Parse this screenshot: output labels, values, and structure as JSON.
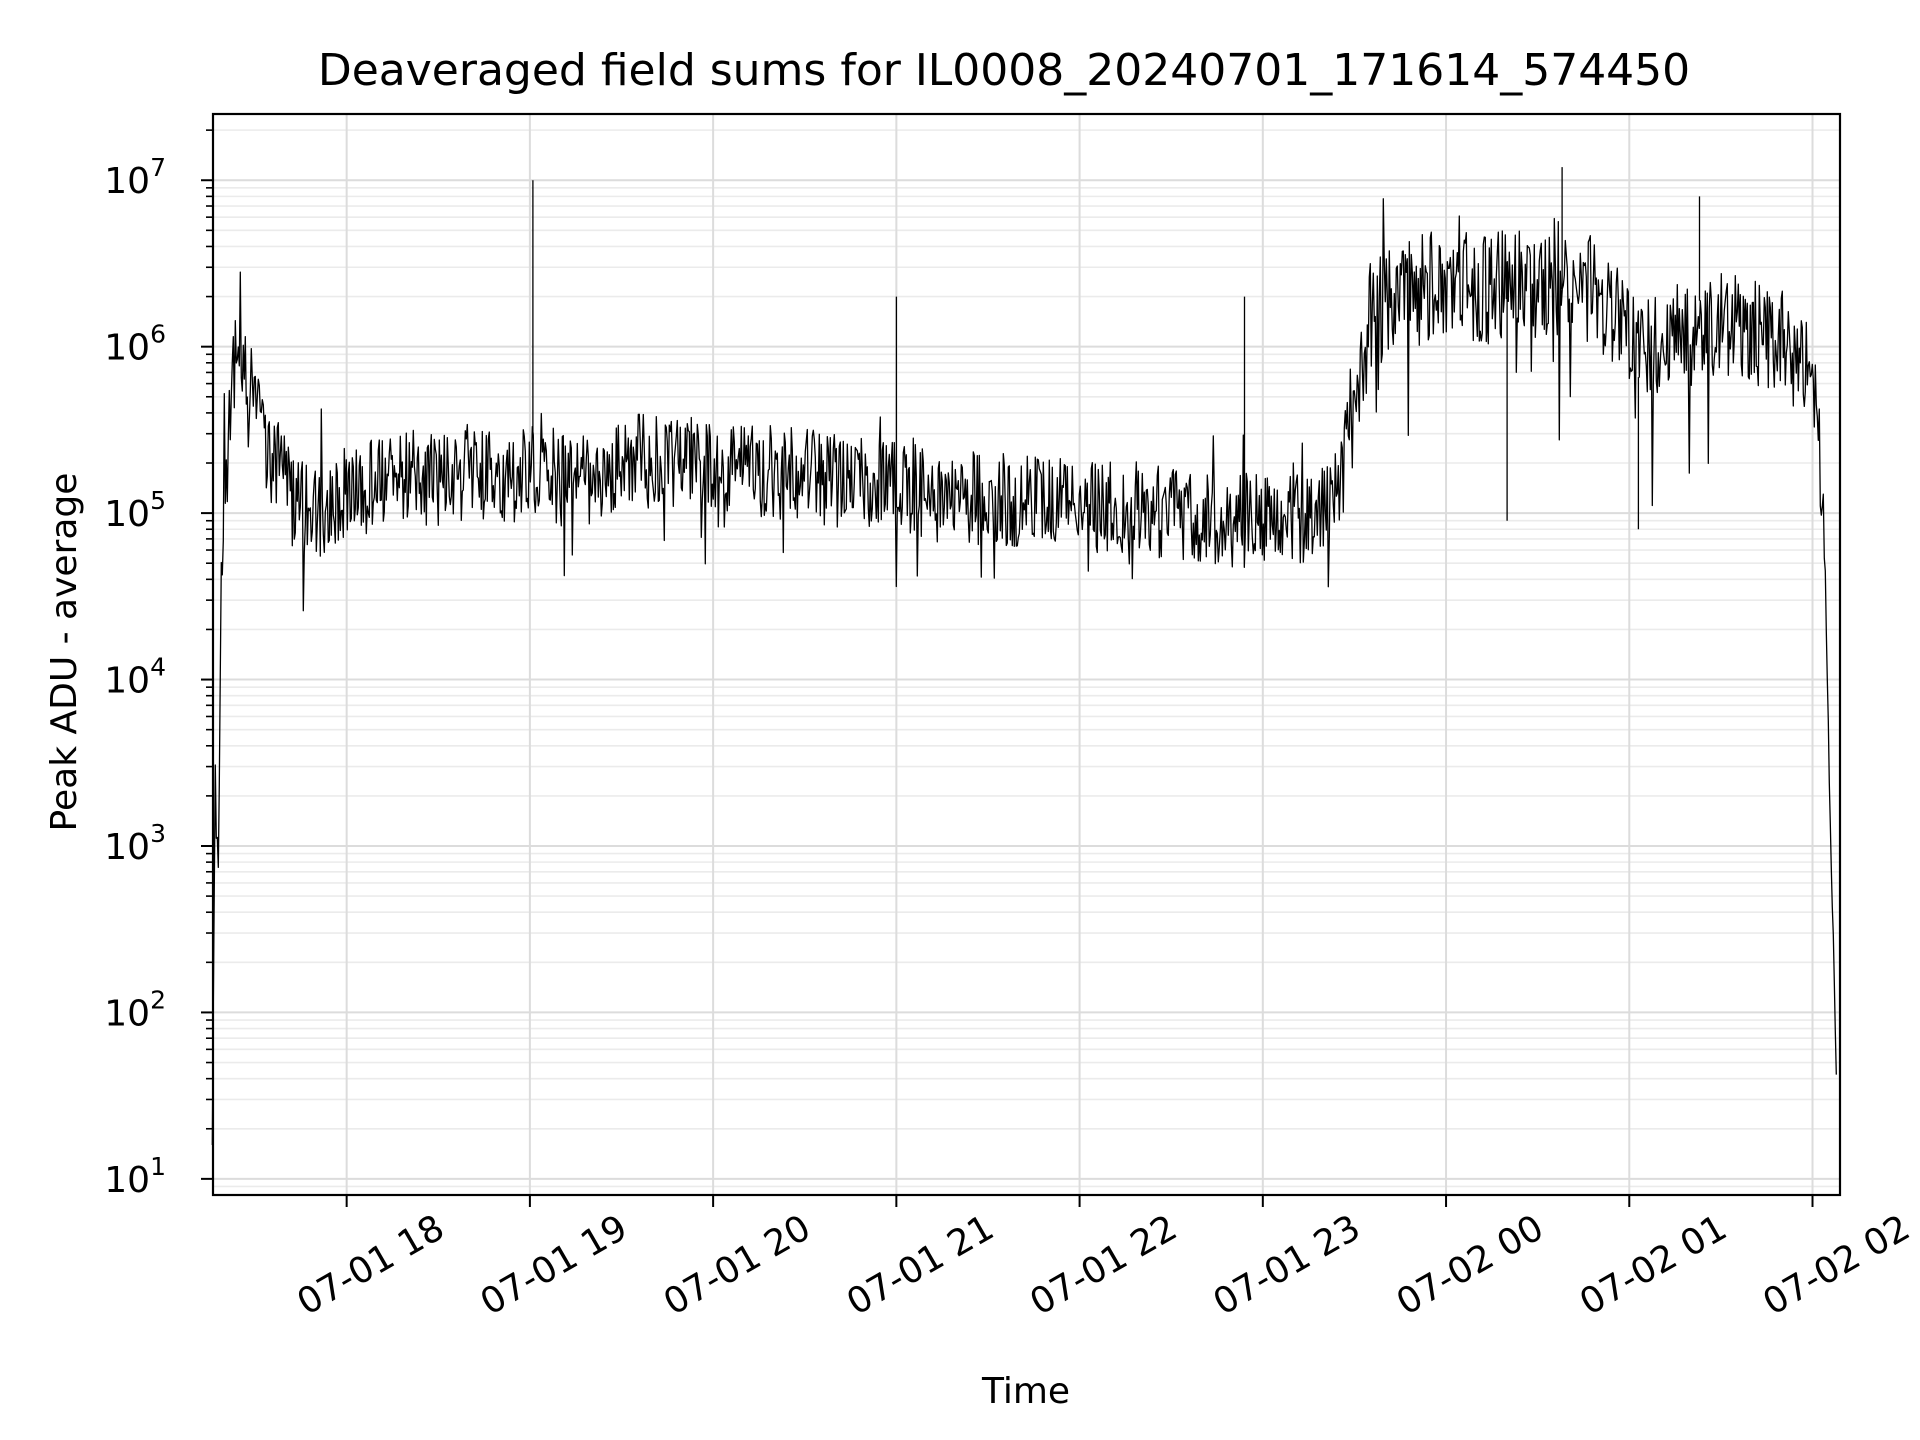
{
  "chart_data": {
    "type": "line",
    "title": "Deaveraged field sums for IL0008_20240701_171614_574450",
    "xlabel": "Time",
    "ylabel": "Peak ADU - average",
    "yscale": "log",
    "ylim": [
      8,
      25000000
    ],
    "xlim": [
      "2024-07-01 17:16:14",
      "2024-07-02 02:09:00"
    ],
    "grid": true,
    "x_ticks": [
      {
        "at": "2024-07-01 18:00",
        "label": "07-01 18"
      },
      {
        "at": "2024-07-01 19:00",
        "label": "07-01 19"
      },
      {
        "at": "2024-07-01 20:00",
        "label": "07-01 20"
      },
      {
        "at": "2024-07-01 21:00",
        "label": "07-01 21"
      },
      {
        "at": "2024-07-01 22:00",
        "label": "07-01 22"
      },
      {
        "at": "2024-07-01 23:00",
        "label": "07-01 23"
      },
      {
        "at": "2024-07-02 00:00",
        "label": "07-02 00"
      },
      {
        "at": "2024-07-02 01:00",
        "label": "07-02 01"
      },
      {
        "at": "2024-07-02 02:00",
        "label": "07-02 02"
      }
    ],
    "y_ticks": [
      {
        "value": 10,
        "base": "10",
        "exp": "1"
      },
      {
        "value": 100,
        "base": "10",
        "exp": "2"
      },
      {
        "value": 1000,
        "base": "10",
        "exp": "3"
      },
      {
        "value": 10000,
        "base": "10",
        "exp": "4"
      },
      {
        "value": 100000,
        "base": "10",
        "exp": "5"
      },
      {
        "value": 1000000,
        "base": "10",
        "exp": "6"
      },
      {
        "value": 10000000,
        "base": "10",
        "exp": "7"
      }
    ],
    "series": [
      {
        "color": "#000000",
        "x": [
          "2024-07-01 17:16",
          "2024-07-01 17:17",
          "2024-07-01 17:18",
          "2024-07-01 17:19",
          "2024-07-01 17:20",
          "2024-07-01 17:22",
          "2024-07-01 17:24",
          "2024-07-01 17:26",
          "2024-07-01 17:28",
          "2024-07-01 17:30",
          "2024-07-01 17:32",
          "2024-07-01 17:35",
          "2024-07-01 17:38",
          "2024-07-01 17:42",
          "2024-07-01 17:46",
          "2024-07-01 17:50",
          "2024-07-01 17:55",
          "2024-07-01 18:00",
          "2024-07-01 18:10",
          "2024-07-01 18:20",
          "2024-07-01 18:30",
          "2024-07-01 18:40",
          "2024-07-01 18:50",
          "2024-07-01 19:00",
          "2024-07-01 19:10",
          "2024-07-01 19:20",
          "2024-07-01 19:30",
          "2024-07-01 19:40",
          "2024-07-01 19:50",
          "2024-07-01 20:00",
          "2024-07-01 20:15",
          "2024-07-01 20:30",
          "2024-07-01 20:45",
          "2024-07-01 21:00",
          "2024-07-01 21:15",
          "2024-07-01 21:30",
          "2024-07-01 21:45",
          "2024-07-01 22:00",
          "2024-07-01 22:15",
          "2024-07-01 22:30",
          "2024-07-01 22:45",
          "2024-07-01 23:00",
          "2024-07-01 23:10",
          "2024-07-01 23:20",
          "2024-07-01 23:25",
          "2024-07-01 23:30",
          "2024-07-01 23:35",
          "2024-07-01 23:45",
          "2024-07-02 00:00",
          "2024-07-02 00:15",
          "2024-07-02 00:30",
          "2024-07-02 00:45",
          "2024-07-02 01:00",
          "2024-07-02 01:15",
          "2024-07-02 01:30",
          "2024-07-02 01:45",
          "2024-07-02 01:55",
          "2024-07-02 02:00",
          "2024-07-02 02:02",
          "2024-07-02 02:04",
          "2024-07-02 02:05",
          "2024-07-02 02:06",
          "2024-07-02 02:07",
          "2024-07-02 02:08"
        ],
        "y": [
          20,
          3000,
          700,
          60000,
          150000,
          500000,
          900000,
          1000000,
          700000,
          450000,
          300000,
          220000,
          180000,
          120000,
          110000,
          100000,
          120000,
          130000,
          150000,
          160000,
          160000,
          170000,
          160000,
          180000,
          170000,
          160000,
          200000,
          220000,
          200000,
          190000,
          180000,
          170000,
          150000,
          140000,
          130000,
          120000,
          120000,
          110000,
          110000,
          100000,
          90000,
          90000,
          90000,
          100000,
          150000,
          400000,
          1500000,
          2000000,
          2500000,
          2200000,
          2500000,
          2200000,
          1200000,
          1100000,
          1500000,
          1200000,
          1000000,
          600000,
          300000,
          60000,
          8000,
          1000,
          200,
          25
        ],
        "spikes": [
          {
            "x": "2024-07-01 19:01",
            "y": 10000000
          },
          {
            "x": "2024-07-01 21:00",
            "y": 2000000
          },
          {
            "x": "2024-07-01 22:54",
            "y": 2000000
          },
          {
            "x": "2024-07-02 00:38",
            "y": 12000000
          },
          {
            "x": "2024-07-02 01:23",
            "y": 8000000
          },
          {
            "x": "2024-07-02 00:20",
            "y": 90000
          },
          {
            "x": "2024-07-02 01:03",
            "y": 80000
          }
        ]
      }
    ]
  }
}
